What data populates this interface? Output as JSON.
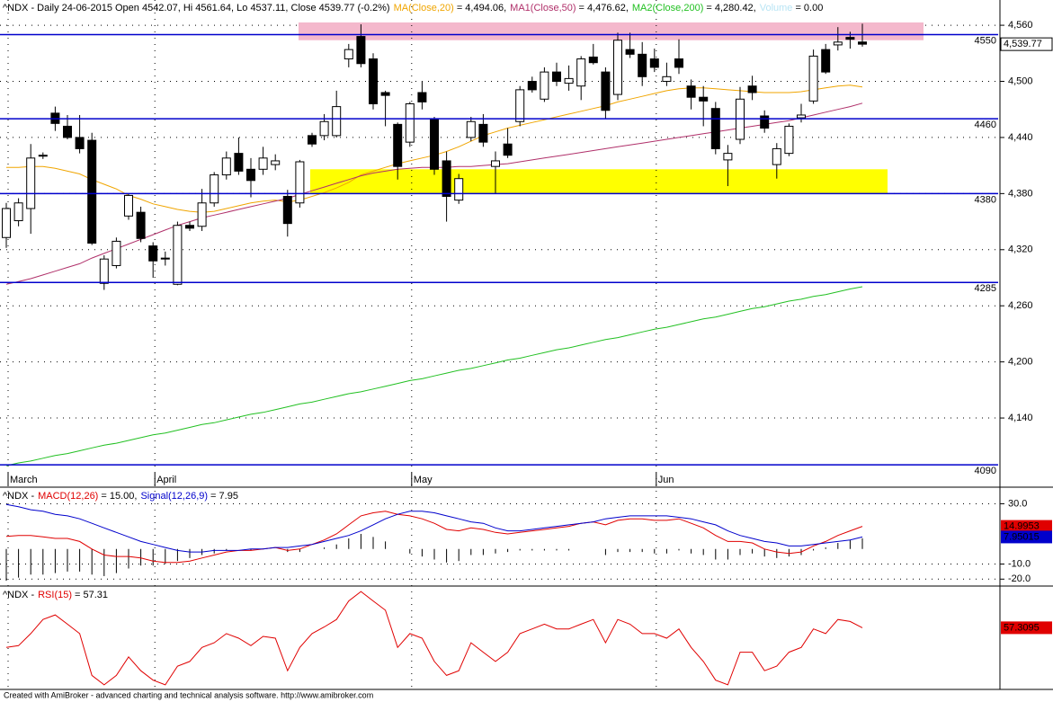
{
  "chart_data": [
    {
      "type": "candlestick",
      "title": "^NDX - Daily 24-06-2015 Open 4542.07, Hi 4561.64, Lo 4537.11, Close 4539.77 (-0.2%)",
      "categories": [
        "March",
        null,
        null,
        null,
        null,
        null,
        null,
        null,
        null,
        null,
        null,
        null,
        "April",
        null,
        null,
        null,
        null,
        null,
        null,
        null,
        null,
        null,
        null,
        null,
        null,
        null,
        null,
        null,
        null,
        null,
        null,
        null,
        null,
        "May",
        null,
        null,
        null,
        null,
        null,
        null,
        null,
        null,
        null,
        null,
        null,
        null,
        null,
        null,
        null,
        null,
        null,
        null,
        null,
        "Jun",
        null,
        null,
        null,
        null,
        null,
        null,
        null,
        null,
        null,
        null,
        null,
        null,
        null,
        null,
        null,
        null,
        null
      ],
      "open": [
        4333,
        4351,
        4364,
        4420,
        4466,
        4452,
        4440,
        4437,
        4284,
        4303,
        4356,
        4360,
        4324,
        4311,
        4283,
        4346,
        4345,
        4370,
        4400,
        4423,
        4406,
        4406,
        4411,
        4377,
        4370,
        4442,
        4442,
        4442,
        4524,
        4548,
        4524,
        4488,
        4454,
        4435,
        4488,
        4460,
        4415,
        4373,
        4440,
        4454,
        4409,
        4433,
        4457,
        4500,
        4481,
        4510,
        4498,
        4495,
        4526,
        4510,
        4486,
        4534,
        4529,
        4524,
        4500,
        4524,
        4495,
        4483,
        4471,
        4416,
        4438,
        4495,
        4463,
        4411,
        4423,
        4461,
        4479,
        4534,
        4539,
        4547,
        4542.07
      ],
      "high": [
        4370,
        4375,
        4433,
        4424,
        4473,
        4464,
        4464,
        4445,
        4314,
        4333,
        4380,
        4366,
        4328,
        4318,
        4350,
        4350,
        4385,
        4403,
        4425,
        4440,
        4418,
        4430,
        4422,
        4384,
        4416,
        4445,
        4465,
        4490,
        4540,
        4561,
        4530,
        4490,
        4456,
        4478,
        4500,
        4462,
        4425,
        4401,
        4462,
        4465,
        4425,
        4450,
        4495,
        4505,
        4515,
        4520,
        4517,
        4527,
        4540,
        4515,
        4552,
        4552,
        4542,
        4535,
        4520,
        4545,
        4502,
        4495,
        4478,
        4432,
        4494,
        4506,
        4469,
        4434,
        4455,
        4476,
        4534,
        4540,
        4558,
        4553,
        4561.64
      ],
      "low": [
        4322,
        4345,
        4337,
        4417,
        4447,
        4438,
        4423,
        4325,
        4277,
        4300,
        4352,
        4328,
        4290,
        4303,
        4282,
        4340,
        4340,
        4366,
        4395,
        4400,
        4376,
        4400,
        4405,
        4334,
        4365,
        4430,
        4437,
        4440,
        4515,
        4515,
        4470,
        4452,
        4395,
        4430,
        4470,
        4400,
        4350,
        4369,
        4436,
        4430,
        4380,
        4418,
        4452,
        4488,
        4478,
        4495,
        4490,
        4480,
        4518,
        4460,
        4480,
        4525,
        4495,
        4510,
        4495,
        4508,
        4470,
        4452,
        4422,
        4388,
        4433,
        4480,
        4445,
        4396,
        4420,
        4456,
        4476,
        4508,
        4533,
        4535,
        4537.11
      ],
      "close": [
        4364,
        4370,
        4418,
        4421,
        4455,
        4440,
        4428,
        4327,
        4310,
        4329,
        4378,
        4332,
        4308,
        4310,
        4346,
        4343,
        4370,
        4400,
        4418,
        4404,
        4394,
        4418,
        4415,
        4348,
        4414,
        4433,
        4457,
        4473,
        4534,
        4519,
        4476,
        4485,
        4409,
        4476,
        4478,
        4406,
        4377,
        4396,
        4457,
        4435,
        4415,
        4421,
        4491,
        4491,
        4510,
        4500,
        4503,
        4524,
        4520,
        4469,
        4544,
        4529,
        4505,
        4515,
        4505,
        4515,
        4483,
        4479,
        4428,
        4423,
        4481,
        4488,
        4450,
        4428,
        4452,
        4464,
        4527,
        4510,
        4542,
        4545,
        4539.77
      ],
      "close_label": "4,539.77",
      "series": [
        {
          "name": "MA(Close,20)",
          "header_value": "= 4,494.06,",
          "color": "#f0a500",
          "values": [
            4408,
            4408,
            4409,
            4409,
            4407,
            4404,
            4401,
            4395,
            4390,
            4385,
            4378,
            4374,
            4369,
            4366,
            4363,
            4361,
            4360,
            4361,
            4364,
            4367,
            4370,
            4372,
            4373,
            4371,
            4373,
            4377,
            4381,
            4386,
            4392,
            4400,
            4404,
            4408,
            4412,
            4415,
            4418,
            4421,
            4425,
            4430,
            4436,
            4442,
            4446,
            4450,
            4453,
            4456,
            4459,
            4462,
            4465,
            4468,
            4471,
            4474,
            4478,
            4481,
            4484,
            4487,
            4490,
            4492,
            4493,
            4493,
            4492,
            4491,
            4490,
            4489,
            4488,
            4488,
            4488,
            4489,
            4491,
            4493,
            4495,
            4496,
            4494.06
          ]
        },
        {
          "name": "MA1(Close,50)",
          "header_value": "= 4,476.62,",
          "color": "#b0306a",
          "values": [
            4283,
            4286,
            4289,
            4293,
            4297,
            4301,
            4305,
            4311,
            4316,
            4321,
            4326,
            4331,
            4336,
            4341,
            4346,
            4350,
            4354,
            4357,
            4360,
            4363,
            4366,
            4369,
            4372,
            4375,
            4379,
            4383,
            4387,
            4391,
            4395,
            4399,
            4402,
            4404,
            4406,
            4407,
            4408,
            4408,
            4408,
            4409,
            4409,
            4410,
            4411,
            4412,
            4414,
            4416,
            4418,
            4420,
            4422,
            4424,
            4426,
            4428,
            4430,
            4432,
            4434,
            4436,
            4438,
            4440,
            4442,
            4444,
            4446,
            4448,
            4450,
            4452,
            4454,
            4456,
            4458,
            4461,
            4464,
            4467,
            4470,
            4473,
            4476.62
          ]
        },
        {
          "name": "MA2(Close,200)",
          "header_value": "= 4,280.42,",
          "color": "#22c022",
          "values": [
            4089,
            4092,
            4094,
            4097,
            4100,
            4102,
            4105,
            4108,
            4111,
            4113,
            4116,
            4119,
            4122,
            4124,
            4127,
            4130,
            4133,
            4135,
            4138,
            4141,
            4144,
            4146,
            4149,
            4152,
            4155,
            4157,
            4160,
            4163,
            4166,
            4168,
            4171,
            4174,
            4177,
            4180,
            4182,
            4185,
            4188,
            4191,
            4193,
            4196,
            4199,
            4202,
            4204,
            4207,
            4210,
            4213,
            4215,
            4218,
            4221,
            4224,
            4226,
            4229,
            4232,
            4235,
            4237,
            4240,
            4243,
            4246,
            4248,
            4251,
            4254,
            4257,
            4259,
            4262,
            4265,
            4267,
            4270,
            4272,
            4275,
            4278,
            4280.42
          ]
        }
      ],
      "volume_legend": {
        "name": "Volume",
        "header_value": "= 0.00",
        "color": "#b8e4f4"
      },
      "levels": [
        4550,
        4460,
        4380,
        4285,
        4090
      ],
      "level_color": "#0000cc",
      "zones": [
        {
          "range": [
            4544,
            4563
          ],
          "color": "#f4b8cc"
        },
        {
          "range": [
            4380,
            4406
          ],
          "color": "#ffff00"
        }
      ],
      "ylim": [
        4067,
        4587
      ],
      "yticks": [
        {
          "value": 4560,
          "label": "4,560"
        },
        {
          "value": 4500,
          "label": "4,500"
        },
        {
          "value": 4440,
          "label": "4,440"
        },
        {
          "value": 4380,
          "label": "4,380"
        },
        {
          "value": 4320,
          "label": "4,320"
        },
        {
          "value": 4260,
          "label": "4,260"
        },
        {
          "value": 4200,
          "label": "4,200"
        },
        {
          "value": 4140,
          "label": "4,140"
        }
      ],
      "grid": true
    },
    {
      "type": "macd",
      "title": "^NDX -",
      "series": [
        {
          "name": "MACD(12,26)",
          "header_value": "= 15.00,",
          "color": "#e00000",
          "box_text_color": "#000080",
          "values": [
            8.4,
            9,
            9,
            8,
            7,
            7,
            5,
            0,
            -4,
            -5,
            -5,
            -6,
            -8,
            -9,
            -9,
            -8,
            -6,
            -4,
            -2,
            -1,
            -1,
            0,
            1,
            -1,
            0,
            3,
            6,
            10,
            16,
            22,
            24,
            25,
            23,
            22,
            20,
            17,
            13,
            12,
            14,
            13,
            11,
            10,
            11,
            12,
            13,
            14,
            15,
            17,
            18,
            16,
            19,
            20,
            20,
            19,
            19,
            20,
            17,
            14,
            9,
            5,
            5,
            4,
            0,
            -2,
            -3,
            -2,
            2,
            5,
            9,
            12,
            14.9953
          ]
        },
        {
          "name": "Signal(12,26,9)",
          "header_value": "= 7.95",
          "color": "#0000cc",
          "box_text_color": "#ffffff",
          "values": [
            29.5,
            28,
            26,
            25,
            23,
            22,
            20,
            17,
            14,
            11,
            8,
            5,
            3,
            1,
            -1,
            -2,
            -2,
            -1,
            -1,
            -1,
            0,
            0,
            1,
            1,
            2,
            3,
            5,
            7,
            9,
            12,
            16,
            20,
            23,
            25,
            25,
            24,
            22,
            20,
            18,
            17,
            14,
            12,
            12,
            13,
            14,
            15,
            16,
            17,
            18,
            20,
            21,
            22,
            22,
            22,
            22,
            21,
            20,
            18,
            16,
            12,
            9,
            7,
            5,
            4,
            2,
            2,
            3,
            4,
            5,
            6,
            7.95015
          ]
        }
      ],
      "histogram": {
        "color": "#000000",
        "values": [
          -21.1,
          -19,
          -17,
          -17,
          -16,
          -15,
          -15,
          -17,
          -18,
          -16,
          -13,
          -11,
          -11,
          -10,
          -8,
          -6,
          -4,
          -3,
          -1,
          0,
          -1,
          0,
          0,
          -2,
          -2,
          0,
          1,
          3,
          7,
          10,
          8,
          5,
          0,
          -3,
          -5,
          -7,
          -9,
          -8,
          -4,
          -4,
          -3,
          -2,
          -1,
          -1,
          -1,
          -1,
          -1,
          0,
          0,
          -4,
          -2,
          -2,
          -2,
          -3,
          -3,
          -1,
          -3,
          -4,
          -7,
          -7,
          -4,
          -3,
          -5,
          -6,
          -5,
          -4,
          -1,
          1,
          4,
          6,
          7.04515
        ]
      },
      "ylim": [
        -24,
        40.4
      ],
      "yticks": [
        {
          "value": 30,
          "label": "30.0"
        },
        {
          "value": -10,
          "label": "-10.0"
        },
        {
          "value": -20,
          "label": "-20.0"
        }
      ],
      "grid": true
    },
    {
      "type": "line",
      "title": "^NDX -",
      "series": [
        {
          "name": "RSI(15)",
          "header_value": "= 57.31",
          "color": "#e00000",
          "box_text_color": "#000080",
          "values": [
            45.4,
            46.5,
            53.8,
            62.3,
            65.1,
            59.5,
            53.8,
            28.5,
            22.8,
            28.5,
            39.7,
            31.3,
            25.6,
            22.8,
            34.1,
            36.9,
            45.4,
            48.2,
            53.8,
            51.0,
            46.5,
            52.1,
            51.0,
            31.3,
            45.4,
            53.8,
            57.8,
            62.3,
            73.5,
            79.2,
            73.5,
            67.9,
            45.4,
            53.8,
            51.0,
            36.9,
            28.5,
            31.3,
            48.2,
            42.5,
            36.9,
            42.5,
            53.8,
            56.6,
            59.5,
            56.6,
            56.6,
            59.5,
            62.3,
            48.2,
            62.3,
            59.5,
            53.8,
            53.8,
            51.0,
            56.6,
            45.4,
            36.9,
            25.6,
            22.8,
            42.5,
            42.5,
            31.3,
            34.1,
            42.5,
            45.4,
            56.6,
            53.8,
            62.3,
            61.1,
            57.3095
          ]
        }
      ],
      "ylim": [
        20,
        82
      ],
      "yticks": [],
      "grid": false
    }
  ],
  "footer": "Created with AmiBroker - advanced charting and technical analysis software. http://www.amibroker.com"
}
